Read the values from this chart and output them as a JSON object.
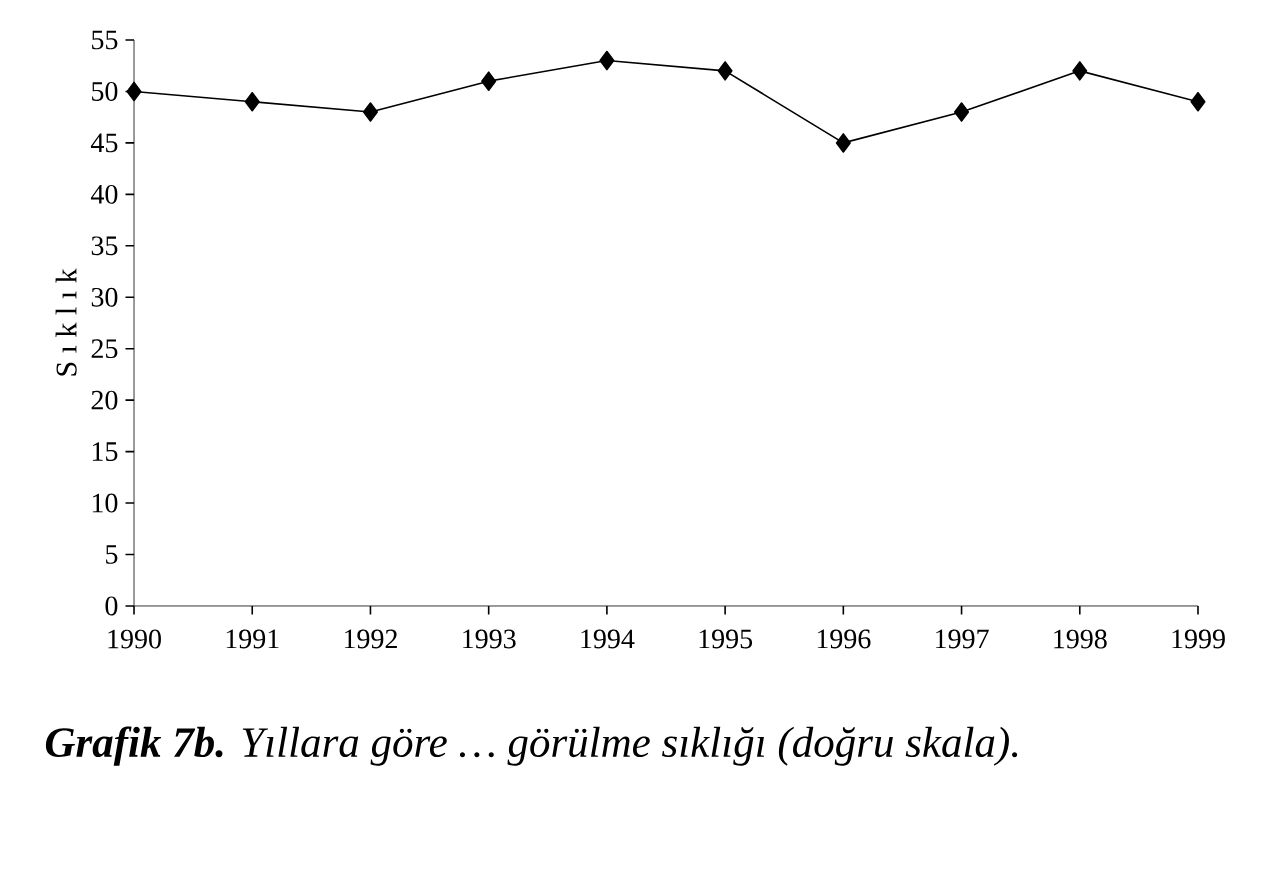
{
  "chart_data": {
    "type": "line",
    "ylabel": "S ı k l ı k",
    "x": [
      1990,
      1991,
      1992,
      1993,
      1994,
      1995,
      1996,
      1997,
      1998,
      1999
    ],
    "values": [
      50,
      49,
      48,
      51,
      53,
      52,
      45,
      48,
      52,
      49
    ],
    "color": "#000000",
    "marker": "diamond",
    "line_style": "solid",
    "grid": false,
    "xlim": [
      1990,
      1999
    ],
    "xticks": [
      1990,
      1991,
      1992,
      1993,
      1994,
      1995,
      1996,
      1997,
      1998,
      1999
    ],
    "ylim": [
      0,
      55
    ],
    "yticks": [
      0,
      5,
      10,
      15,
      20,
      25,
      30,
      35,
      40,
      45,
      50,
      55
    ],
    "annotations": [
      "**Grafik 7b.** Yıllara göre … görülme sıklığı (doğru skala)."
    ]
  }
}
